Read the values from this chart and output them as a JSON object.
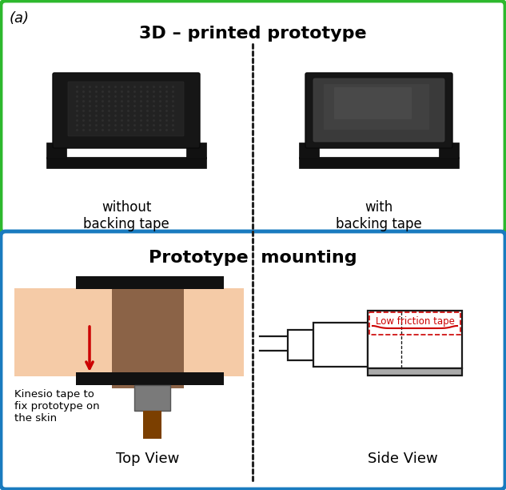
{
  "fig_width": 6.33,
  "fig_height": 6.12,
  "dpi": 100,
  "panel_a_label": "(a)",
  "top_panel_title": "3D – printed prototype",
  "top_panel_border_color": "#2db82d",
  "bottom_panel_title": "Prototype  mounting",
  "bottom_panel_border_color": "#1a7bbf",
  "label_without": "without\nbacking tape",
  "label_with": "with\nbacking tape",
  "label_top_view": "Top View",
  "label_side_view": "Side View",
  "kinesio_text": "Kinesio tape to\nfix prototype on\nthe skin",
  "low_friction_text": "Low friction tape",
  "skin_color": "#f5cba7",
  "kinesio_color": "#8B6347",
  "black_tape_color": "#111111",
  "accelerometer_gray": "#7a7a7a",
  "cable_color": "#7B3F00",
  "arrow_color": "#cc0000",
  "low_friction_tape_color": "#cc0000",
  "diagram_line_color": "#1a1a1a",
  "dashed_line_color": "#222222",
  "top_panel_bg": "#ffffff",
  "bottom_panel_bg": "#ffffff"
}
